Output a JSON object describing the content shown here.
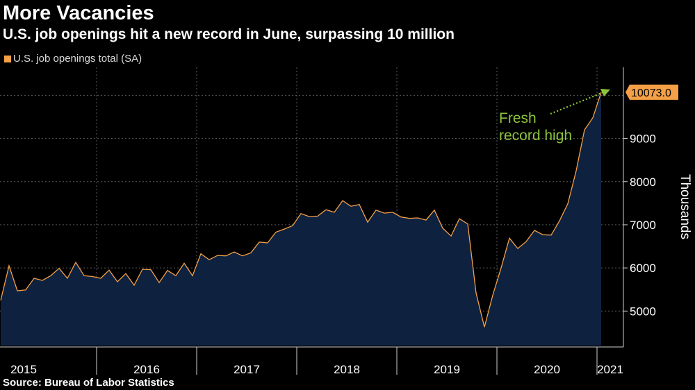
{
  "header": {
    "title": "More Vacancies",
    "subtitle": "U.S. job openings hit a new record in June, surpassing 10 million"
  },
  "footer": {
    "source": "Source: Bureau of Labor Statistics"
  },
  "colors": {
    "line": "#f5a046",
    "area": "#0e2240",
    "grid": "#5a5a5a",
    "annotation": "#8cc43c",
    "background": "#000000"
  },
  "chart_data": {
    "type": "area",
    "legend": [
      "U.S. job openings total (SA)"
    ],
    "legend_position": "top-left",
    "ylabel": "Thousands",
    "ylim": [
      4200,
      10650
    ],
    "yticks": [
      5000,
      6000,
      7000,
      8000,
      9000
    ],
    "grid": true,
    "x_labels": [
      "2015",
      "2016",
      "2017",
      "2018",
      "2019",
      "2020",
      "2021"
    ],
    "x_start": "2015-01",
    "series": [
      {
        "name": "U.S. job openings total (SA)",
        "values": [
          5250,
          6050,
          5470,
          5490,
          5760,
          5710,
          5820,
          5990,
          5760,
          6130,
          5820,
          5800,
          5760,
          5950,
          5680,
          5870,
          5600,
          5970,
          5960,
          5660,
          5940,
          5820,
          6110,
          5820,
          6330,
          6190,
          6290,
          6280,
          6370,
          6280,
          6350,
          6600,
          6580,
          6830,
          6900,
          6980,
          7260,
          7190,
          7200,
          7350,
          7290,
          7560,
          7430,
          7470,
          7060,
          7340,
          7270,
          7290,
          7180,
          7150,
          7160,
          7110,
          7340,
          6920,
          6740,
          7140,
          7020,
          5420,
          4630,
          5370,
          6000,
          6690,
          6450,
          6610,
          6870,
          6770,
          6760,
          7090,
          7490,
          8250,
          9200,
          9480,
          10073
        ]
      }
    ],
    "annotations": [
      {
        "text_lines": [
          "Fresh",
          "record high"
        ]
      }
    ],
    "last_value_label": "10073.0"
  }
}
